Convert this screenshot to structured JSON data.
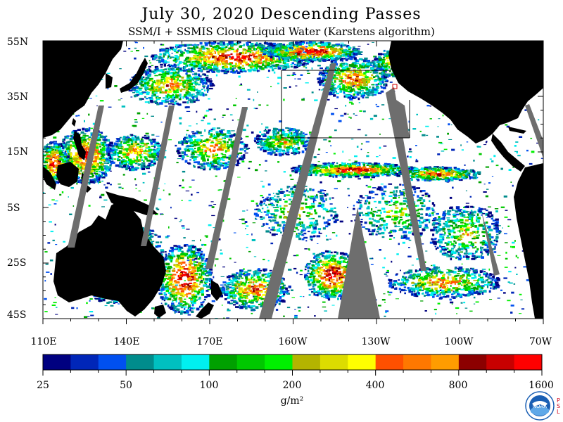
{
  "title": "July 30, 2020  Descending Passes",
  "subtitle": "SSM/I + SSMIS Cloud Liquid Water (Karstens algorithm)",
  "lat_labels": [
    "55N",
    "35N",
    "15N",
    "5S",
    "25S",
    "45S"
  ],
  "lon_labels": [
    "110E",
    "140E",
    "170E",
    "160W",
    "130W",
    "100W",
    "70W"
  ],
  "colorbar": {
    "labels": [
      "25",
      "50",
      "100",
      "200",
      "400",
      "800",
      "1600"
    ],
    "unit": "g/m²",
    "colors": [
      "#000080",
      "#0026b8",
      "#0050f0",
      "#008c8c",
      "#00c0c0",
      "#00f0f0",
      "#00a000",
      "#00c800",
      "#00f000",
      "#b4b400",
      "#dcdc00",
      "#ffff00",
      "#ff5000",
      "#ff7800",
      "#ff9c00",
      "#8c0000",
      "#c80000",
      "#ff0000"
    ]
  },
  "legend_colors": {
    "land": "#000000",
    "no_data_swath_gap": "#6e6e6e",
    "ocean_no_cloud": "#ffffff"
  },
  "logo": {
    "icon": "noaa-logo-icon",
    "text": "NOAA",
    "side_text": "PSL"
  }
}
